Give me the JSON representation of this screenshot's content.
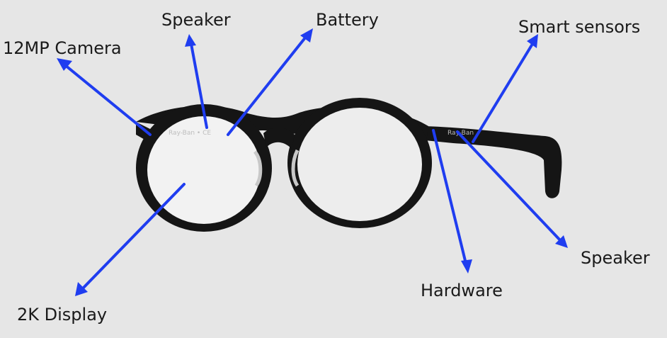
{
  "labels": {
    "camera": "12MP Camera",
    "speaker_left": "Speaker",
    "battery": "Battery",
    "smart_sensors": "Smart sensors",
    "display": "2K Display",
    "hardware": "Hardware",
    "speaker_right": "Speaker"
  },
  "frame_print": {
    "left_lens_top": "Ray-Ban  •  CE",
    "temple_logo": "Ray-Ban"
  },
  "colors": {
    "background": "#e6e6e6",
    "arrow": "#1f3df0",
    "frame": "#151515",
    "lens": "#f2f2f2"
  }
}
